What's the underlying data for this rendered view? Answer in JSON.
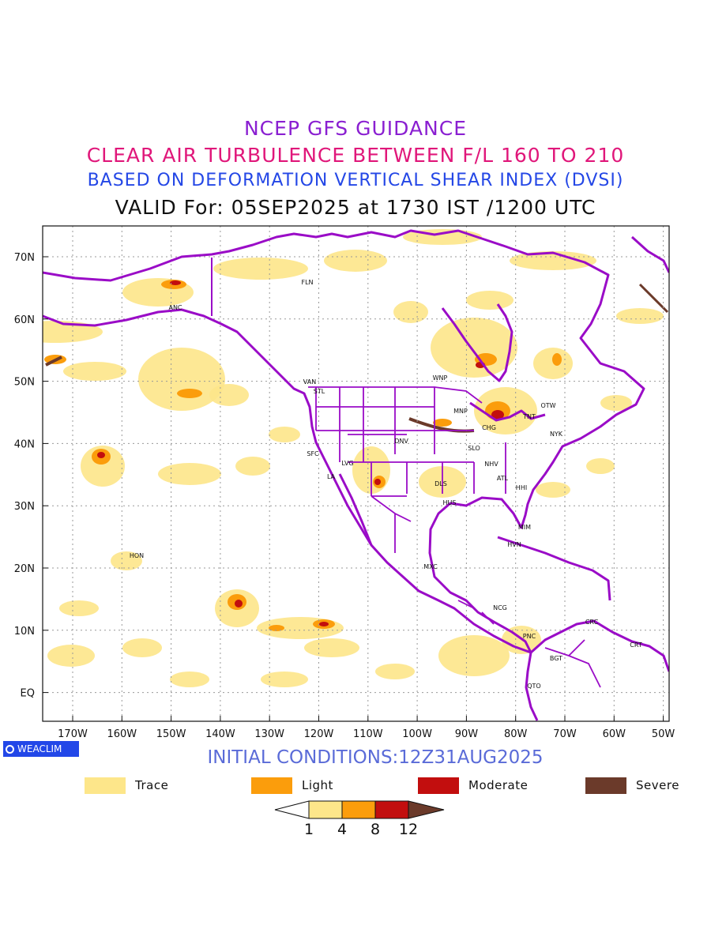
{
  "title": {
    "line1": "NCEP GFS GUIDANCE",
    "line2": "CLEAR AIR TURBULENCE BETWEEN F/L 160 TO 210",
    "line3": "BASED ON DEFORMATION VERTICAL SHEAR INDEX (DVSI)",
    "line4": "VALID For: 05SEP2025 at 1730 IST /1200 UTC"
  },
  "axes": {
    "lon_labels": [
      "170W",
      "160W",
      "150W",
      "140W",
      "130W",
      "120W",
      "110W",
      "100W",
      "90W",
      "80W",
      "70W",
      "60W",
      "50W"
    ],
    "lat_labels": [
      "70N",
      "60N",
      "50N",
      "40N",
      "30N",
      "20N",
      "10N",
      "EQ"
    ]
  },
  "cities": [
    "ANC",
    "FLN",
    "VAN",
    "STL",
    "WNP",
    "MNP",
    "OTW",
    "TNT",
    "CHG",
    "NYK",
    "DNV",
    "SLO",
    "SFC",
    "LVG",
    "LA",
    "NHV",
    "ATL",
    "DLS",
    "HHI",
    "HUS",
    "MIM",
    "HVN",
    "HON",
    "MXC",
    "NCG",
    "CRC",
    "PNC",
    "CRT",
    "BGT",
    "QTO"
  ],
  "colors": {
    "trace": "#fde68a",
    "light": "#fb9d0c",
    "moderate": "#c20e0e",
    "severe": "#6b3a2a",
    "coastline": "#9a0cc7"
  },
  "badge": {
    "text": "WEACLIM"
  },
  "initial_conditions": "INITIAL CONDITIONS:12Z31AUG2025",
  "legend": [
    {
      "label": "Trace",
      "color": "#fde68a"
    },
    {
      "label": "Light",
      "color": "#fb9d0c"
    },
    {
      "label": "Moderate",
      "color": "#c20e0e"
    },
    {
      "label": "Severe",
      "color": "#6b3a2a"
    }
  ],
  "colorbar": {
    "ticks": [
      "1",
      "4",
      "8",
      "12"
    ]
  }
}
